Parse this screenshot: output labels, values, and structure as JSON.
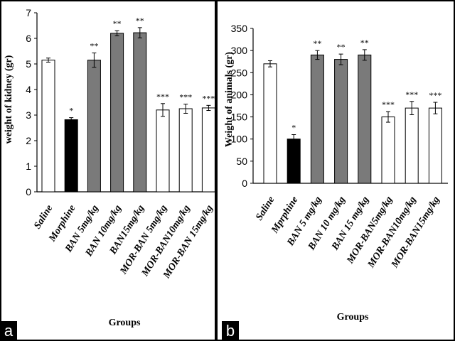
{
  "panels": [
    {
      "letter": "a"
    },
    {
      "letter": "b"
    }
  ],
  "colors": {
    "white": "#ffffff",
    "black": "#000000",
    "gray": "#7a7a7a",
    "axis": "#000000"
  },
  "chart_data": [
    {
      "type": "bar",
      "title": "",
      "xlabel": "Groups",
      "ylabel": "weight of kidney (gr)",
      "ylim": [
        0,
        7
      ],
      "yticks": [
        0,
        1,
        2,
        3,
        4,
        5,
        6,
        7
      ],
      "grid": false,
      "categories": [
        "Saline",
        "Morphine",
        "BAN 5mg/kg",
        "BAN 10mg/kg",
        "BAN15mg/kg",
        "MOR-BAN 5mg/kg",
        "MOR-BAN10mg/kg",
        "MOR-BAN 15mg/kg"
      ],
      "values": [
        5.15,
        2.82,
        5.15,
        6.2,
        6.22,
        3.2,
        3.25,
        3.28
      ],
      "errors": [
        0.08,
        0.08,
        0.28,
        0.1,
        0.2,
        0.25,
        0.18,
        0.1
      ],
      "fills": [
        "white",
        "black",
        "gray",
        "gray",
        "gray",
        "white",
        "white",
        "white"
      ],
      "significance": [
        "",
        "*",
        "**",
        "**",
        "**",
        "***",
        "***",
        "***"
      ]
    },
    {
      "type": "bar",
      "title": "",
      "xlabel": "Groups",
      "ylabel": "Weight of animals (gr)",
      "ylim": [
        0,
        350
      ],
      "yticks": [
        0,
        50,
        100,
        150,
        200,
        250,
        300,
        350
      ],
      "grid": false,
      "categories": [
        "Saline",
        "Mprphine",
        "BAN 5 mg/kg",
        "BAN 10 mg/kg",
        "BAN 15 mg/kg",
        "MOR-BAN5mg/kg",
        "MOR-BAN10mg/kg",
        "MOR-BAN15mg/kg"
      ],
      "values": [
        270,
        100,
        290,
        280,
        290,
        150,
        170,
        170
      ],
      "errors": [
        7,
        10,
        10,
        12,
        12,
        12,
        15,
        13
      ],
      "fills": [
        "white",
        "black",
        "gray",
        "gray",
        "gray",
        "white",
        "white",
        "white"
      ],
      "significance": [
        "",
        "*",
        "**",
        "**",
        "**",
        "***",
        "***",
        "***"
      ]
    }
  ]
}
